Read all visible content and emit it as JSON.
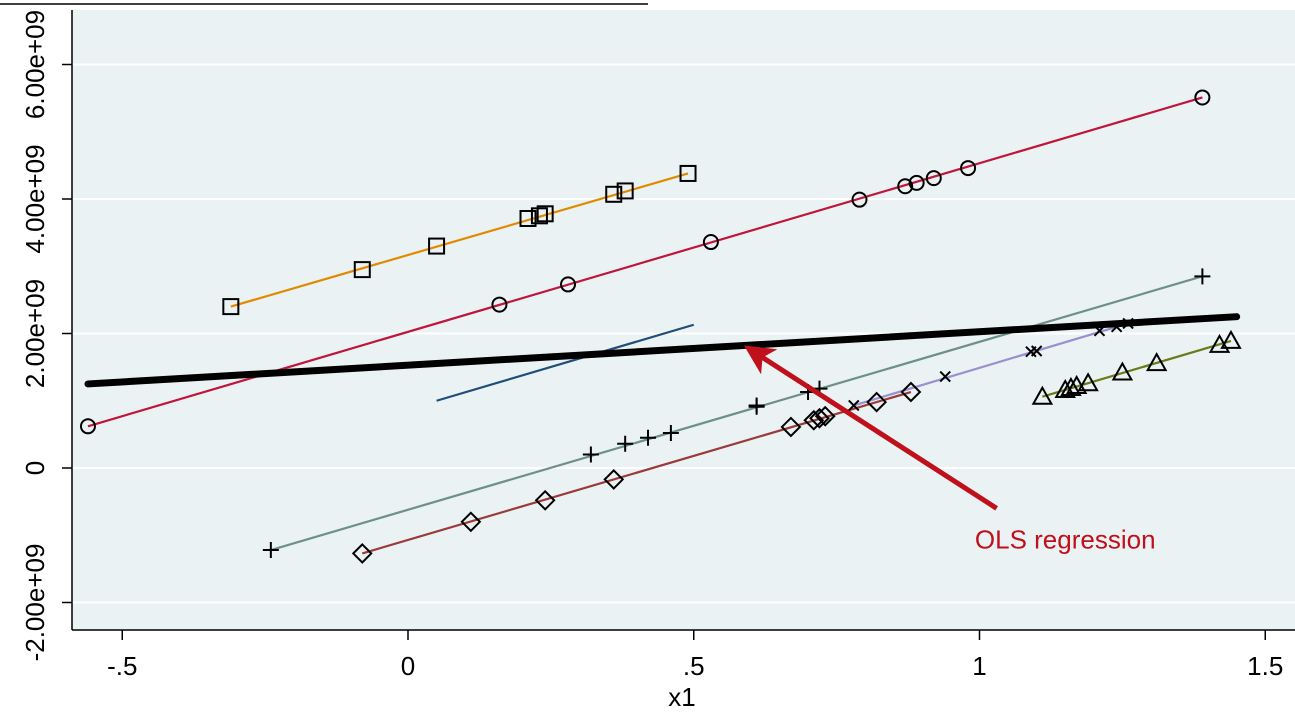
{
  "chart_data": {
    "type": "scatter",
    "title": "",
    "xlabel": "x1",
    "ylabel": "",
    "xlim": [
      -0.6,
      1.52
    ],
    "ylim": [
      -2400000000.0,
      6300000000.0
    ],
    "grid": true,
    "x_ticks": [
      {
        "value": -0.5,
        "label": "-.5"
      },
      {
        "value": 0,
        "label": "0"
      },
      {
        "value": 0.5,
        "label": ".5"
      },
      {
        "value": 1,
        "label": "1"
      },
      {
        "value": 1.5,
        "label": "1.5"
      }
    ],
    "y_ticks": [
      {
        "value": -2000000000.0,
        "label": "-2.00e+09"
      },
      {
        "value": 0,
        "label": "0"
      },
      {
        "value": 2000000000.0,
        "label": "2.00e+09"
      },
      {
        "value": 4000000000.0,
        "label": "4.00e+09"
      },
      {
        "value": 6000000000.0,
        "label": "6.00e+09"
      }
    ],
    "colors": {
      "background": "#eaf2f3",
      "grid": "#ffffff",
      "ols": "#000000",
      "annotation": "#c0101c"
    },
    "series": [
      {
        "marker": "square",
        "color": "#e08a00",
        "x": [
          -0.31,
          -0.08,
          0.05,
          0.21,
          0.23,
          0.24,
          0.36,
          0.38,
          0.49
        ],
        "y": [
          2400000000.0,
          2950000000.0,
          3300000000.0,
          3710000000.0,
          3750000000.0,
          3780000000.0,
          4070000000.0,
          4120000000.0,
          4380000000.0
        ],
        "fit": [
          [
            -0.31,
            2400000000.0
          ],
          [
            0.49,
            4380000000.0
          ]
        ]
      },
      {
        "marker": "circle",
        "color": "#c0153c",
        "x": [
          -0.56,
          0.16,
          0.28,
          0.53,
          0.79,
          0.87,
          0.89,
          0.92,
          0.98,
          1.39
        ],
        "y": [
          620000000.0,
          2430000000.0,
          2730000000.0,
          3360000000.0,
          3990000000.0,
          4190000000.0,
          4240000000.0,
          4310000000.0,
          4460000000.0,
          5510000000.0
        ],
        "fit": [
          [
            -0.56,
            620000000.0
          ],
          [
            1.39,
            5510000000.0
          ]
        ]
      },
      {
        "marker": "none",
        "color": "#1f4e79",
        "x": [],
        "y": [],
        "fit": [
          [
            0.05,
            1000000000.0
          ],
          [
            0.5,
            2130000000.0
          ]
        ]
      },
      {
        "marker": "plus",
        "color": "#6f8f8a",
        "x": [
          -0.24,
          0.32,
          0.38,
          0.42,
          0.46,
          0.61,
          0.61,
          0.7,
          0.72,
          1.39
        ],
        "y": [
          -1220000000.0,
          200000000.0,
          360000000.0,
          450000000.0,
          520000000.0,
          910000000.0,
          930000000.0,
          1130000000.0,
          1180000000.0,
          2850000000.0
        ],
        "fit": [
          [
            -0.24,
            -1220000000.0
          ],
          [
            1.39,
            2850000000.0
          ]
        ]
      },
      {
        "marker": "diamond",
        "color": "#9b3a3a",
        "x": [
          -0.08,
          0.11,
          0.24,
          0.36,
          0.67,
          0.71,
          0.72,
          0.73,
          0.82,
          0.88
        ],
        "y": [
          -1270000000.0,
          -800000000.0,
          -480000000.0,
          -170000000.0,
          610000000.0,
          710000000.0,
          740000000.0,
          770000000.0,
          980000000.0,
          1130000000.0
        ],
        "fit": [
          [
            -0.08,
            -1270000000.0
          ],
          [
            0.88,
            1130000000.0
          ]
        ]
      },
      {
        "marker": "x",
        "color": "#9a8fd0",
        "x": [
          0.78,
          0.94,
          1.09,
          1.1,
          1.21,
          1.24,
          1.26
        ],
        "y": [
          930000000.0,
          1360000000.0,
          1730000000.0,
          1740000000.0,
          2040000000.0,
          2100000000.0,
          2150000000.0
        ],
        "fit": [
          [
            0.78,
            930000000.0
          ],
          [
            1.26,
            2150000000.0
          ]
        ]
      },
      {
        "marker": "triangle",
        "color": "#6b7a1a",
        "x": [
          1.11,
          1.15,
          1.16,
          1.17,
          1.19,
          1.25,
          1.31,
          1.42,
          1.44
        ],
        "y": [
          1060000000.0,
          1160000000.0,
          1190000000.0,
          1220000000.0,
          1260000000.0,
          1420000000.0,
          1560000000.0,
          1830000000.0,
          1890000000.0
        ],
        "fit": [
          [
            1.11,
            1060000000.0
          ],
          [
            1.44,
            1890000000.0
          ]
        ]
      }
    ],
    "ols_line": [
      [
        -0.56,
        1250000000.0
      ],
      [
        1.45,
        2250000000.0
      ]
    ],
    "annotations": [
      {
        "text": "OLS regression",
        "x": 1.15,
        "y": -1200000000.0,
        "arrow_from": [
          1.03,
          -600000000.0
        ],
        "arrow_to": [
          0.61,
          1700000000.0
        ]
      }
    ]
  }
}
